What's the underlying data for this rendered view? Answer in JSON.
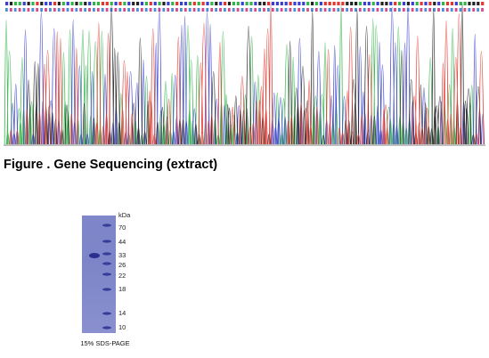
{
  "chromatogram": {
    "colors": {
      "A": "#33b34a",
      "C": "#3a3fd0",
      "G": "#222222",
      "T": "#e0372f"
    }
  },
  "caption": "Figure . Gene Sequencing (extract)",
  "gel": {
    "unit": "kDa",
    "markers": [
      "70",
      "44",
      "33",
      "26",
      "22",
      "18",
      "14",
      "10"
    ],
    "gel_label": "15% SDS-PAGE",
    "colors": {
      "gel": "#7d85c8",
      "band": "#2a2f8f"
    }
  }
}
